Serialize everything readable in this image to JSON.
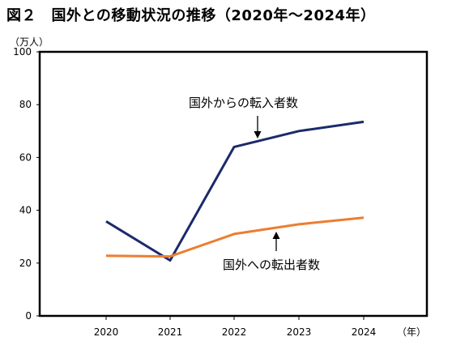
{
  "chart_data": {
    "type": "line",
    "title": "図２　国外との移動状況の推移（2020年～2024年）",
    "y_unit": "（万人）",
    "x_unit": "（年）",
    "categories": [
      "2020",
      "2021",
      "2022",
      "2023",
      "2024"
    ],
    "ylim": [
      0,
      100
    ],
    "yticks": [
      0,
      20,
      40,
      60,
      80,
      100
    ],
    "grid": false,
    "series": [
      {
        "name": "国外からの転入者数",
        "values": [
          35.8,
          21.0,
          64.0,
          70.0,
          73.5
        ],
        "color": "#1b2a6b"
      },
      {
        "name": "国外への転出者数",
        "values": [
          22.8,
          22.5,
          31.0,
          34.7,
          37.2
        ],
        "color": "#ed7d31"
      }
    ]
  }
}
